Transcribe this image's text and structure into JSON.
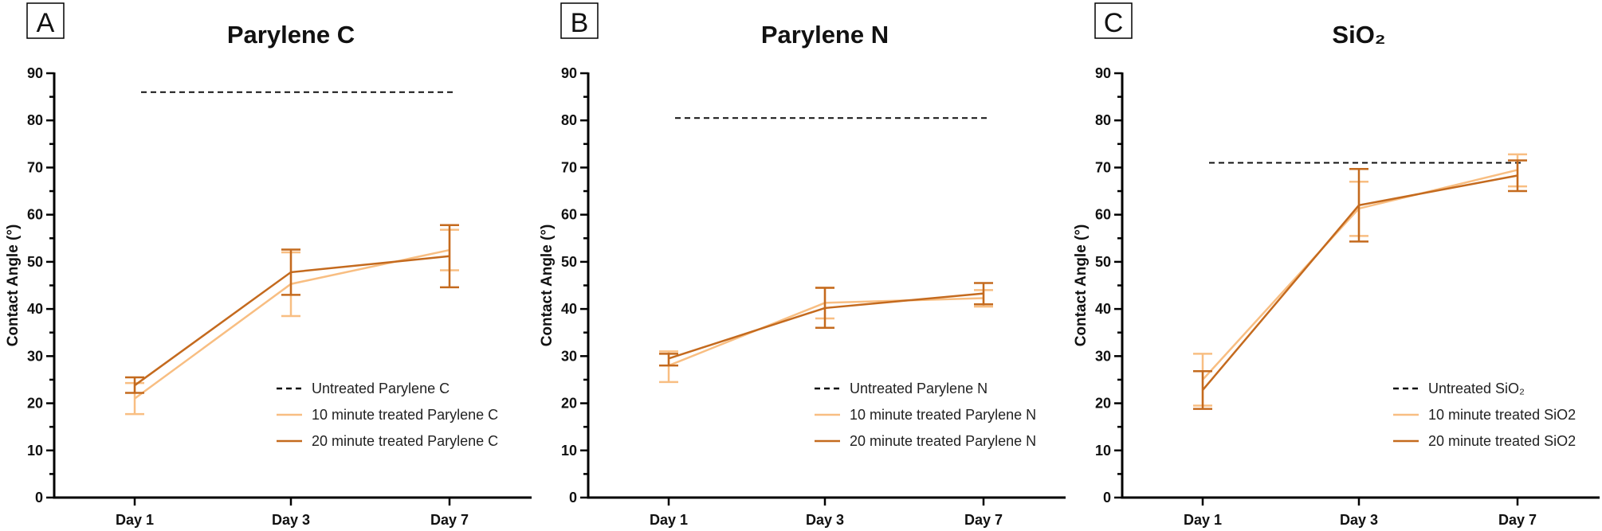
{
  "colors": {
    "untreated": "#111111",
    "ten_min": "#F8BE82",
    "twenty_min": "#C46A1E",
    "axis": "#000000"
  },
  "chart_data": [
    {
      "type": "line",
      "panel_label": "A",
      "title": "Parylene C",
      "xlabel": "",
      "ylabel": "Contact Angle (°)",
      "categories": [
        "Day 1",
        "Day 3",
        "Day 7"
      ],
      "ylim": [
        0,
        90
      ],
      "yticks": [
        0,
        10,
        20,
        30,
        40,
        50,
        60,
        70,
        80,
        90
      ],
      "grid": false,
      "legend_position": "bottom-right",
      "reference_line": {
        "name": "Untreated Parylene C",
        "value": 86,
        "style": "dashed"
      },
      "series": [
        {
          "name": "10 minute treated Parylene C",
          "values": [
            21.0,
            45.3,
            52.5
          ],
          "error_low": [
            17.7,
            38.5,
            48.2
          ],
          "error_high": [
            24.3,
            52.0,
            56.8
          ]
        },
        {
          "name": "20 minute treated Parylene C",
          "values": [
            23.8,
            47.8,
            51.2
          ],
          "error_low": [
            22.2,
            43.0,
            44.6
          ],
          "error_high": [
            25.5,
            52.6,
            57.8
          ]
        }
      ]
    },
    {
      "type": "line",
      "panel_label": "B",
      "title": "Parylene N",
      "xlabel": "",
      "ylabel": "Contact Angle (°)",
      "categories": [
        "Day 1",
        "Day 3",
        "Day 7"
      ],
      "ylim": [
        0,
        90
      ],
      "yticks": [
        0,
        10,
        20,
        30,
        40,
        50,
        60,
        70,
        80,
        90
      ],
      "grid": false,
      "legend_position": "bottom-right",
      "reference_line": {
        "name": "Untreated Parylene N",
        "value": 80.5,
        "style": "dashed"
      },
      "series": [
        {
          "name": "10 minute treated Parylene N",
          "values": [
            28.0,
            41.3,
            42.3
          ],
          "error_low": [
            24.5,
            38.0,
            40.5
          ],
          "error_high": [
            31.0,
            44.5,
            44.0
          ]
        },
        {
          "name": "20 minute treated Parylene N",
          "values": [
            29.5,
            40.2,
            43.3
          ],
          "error_low": [
            28.0,
            36.0,
            41.0
          ],
          "error_high": [
            30.5,
            44.5,
            45.5
          ]
        }
      ]
    },
    {
      "type": "line",
      "panel_label": "C",
      "title": "SiO₂",
      "xlabel": "",
      "ylabel": "Contact Angle (°)",
      "categories": [
        "Day 1",
        "Day 3",
        "Day 7"
      ],
      "ylim": [
        0,
        90
      ],
      "yticks": [
        0,
        10,
        20,
        30,
        40,
        50,
        60,
        70,
        80,
        90
      ],
      "grid": false,
      "legend_position": "bottom-right",
      "reference_line": {
        "name": "Untreated SiO₂",
        "value": 71,
        "style": "dashed"
      },
      "series": [
        {
          "name": "10 minute treated SiO2",
          "values": [
            25.0,
            61.3,
            69.5
          ],
          "error_low": [
            19.5,
            55.5,
            66.0
          ],
          "error_high": [
            30.5,
            67.0,
            72.8
          ]
        },
        {
          "name": "20 minute treated SiO2",
          "values": [
            22.8,
            62.0,
            68.3
          ],
          "error_low": [
            18.8,
            54.3,
            65.0
          ],
          "error_high": [
            26.8,
            69.7,
            71.5
          ]
        }
      ]
    }
  ]
}
